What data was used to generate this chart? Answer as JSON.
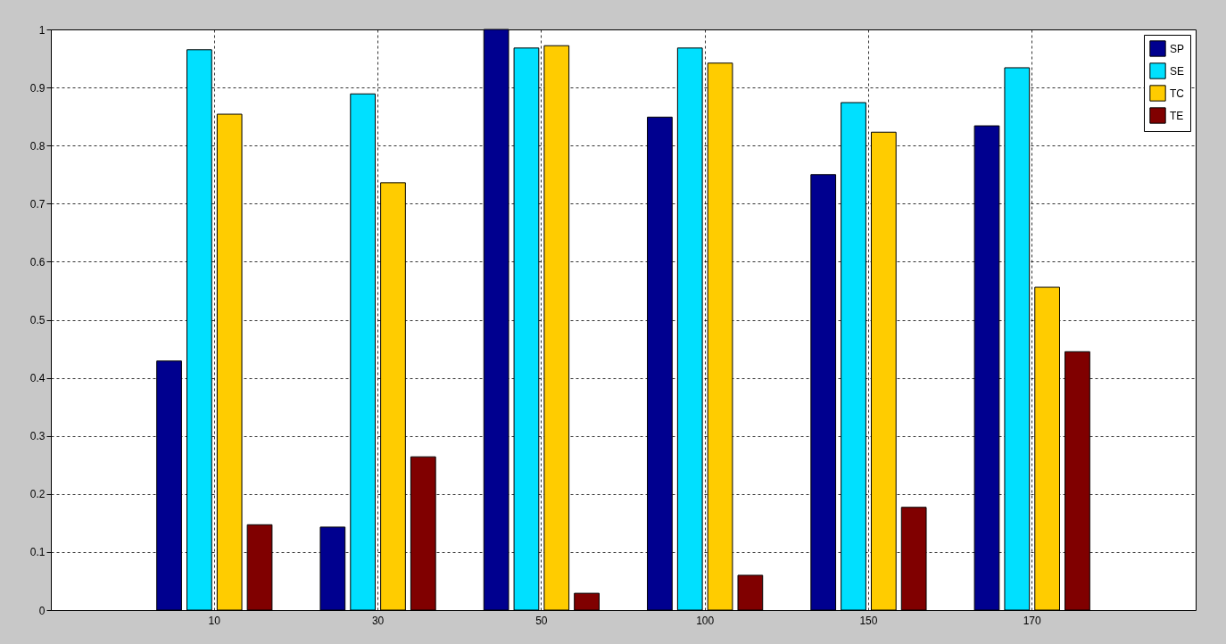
{
  "chart_data": {
    "type": "bar",
    "categories": [
      "10",
      "30",
      "50",
      "100",
      "150",
      "170"
    ],
    "series": [
      {
        "name": "SP",
        "color": "#00008f",
        "values": [
          0.429,
          0.143,
          1.0,
          0.849,
          0.75,
          0.834
        ]
      },
      {
        "name": "SE",
        "color": "#00e0ff",
        "values": [
          0.965,
          0.889,
          0.968,
          0.968,
          0.874,
          0.934
        ]
      },
      {
        "name": "TC",
        "color": "#ffcc00",
        "values": [
          0.854,
          0.736,
          0.972,
          0.942,
          0.823,
          0.556
        ]
      },
      {
        "name": "TE",
        "color": "#800000",
        "values": [
          0.147,
          0.264,
          0.029,
          0.06,
          0.177,
          0.445
        ]
      }
    ],
    "ylim": [
      0,
      1
    ],
    "yticks": [
      0,
      0.1,
      0.2,
      0.3,
      0.4,
      0.5,
      0.6,
      0.7,
      0.8,
      0.9,
      1
    ],
    "grid": true,
    "legend": "top right"
  }
}
